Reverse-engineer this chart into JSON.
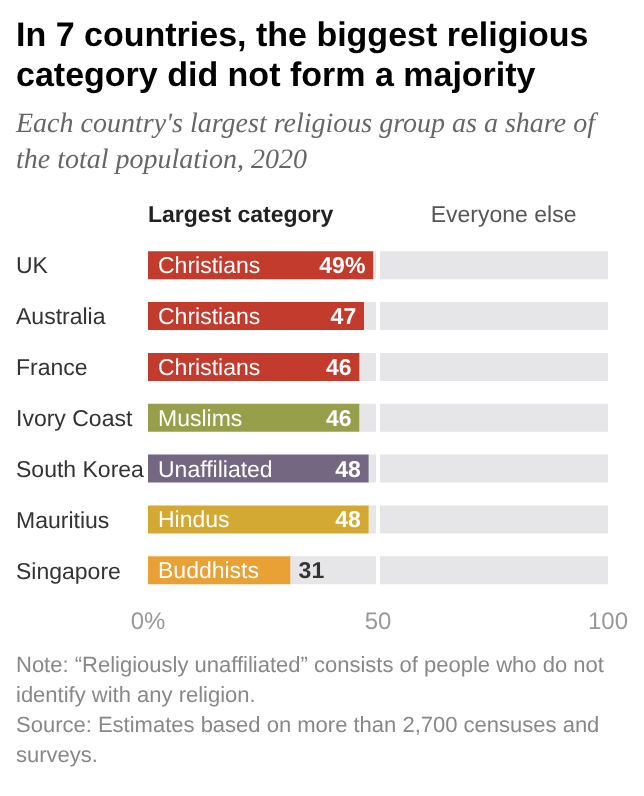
{
  "chart_data": {
    "type": "bar",
    "orientation": "horizontal",
    "stacked": true,
    "title": "In 7 countries, the biggest religious category did not form a majority",
    "subtitle": "Each country's largest religious group as a share of the total population, 2020",
    "categories": [
      "UK",
      "Australia",
      "France",
      "Ivory Coast",
      "South Korea",
      "Mauritius",
      "Singapore"
    ],
    "series": [
      {
        "name": "Largest category",
        "colors": [
          "#c33b2c",
          "#c33b2c",
          "#c33b2c",
          "#979f4a",
          "#736781",
          "#d3a934",
          "#e9a034"
        ],
        "values": [
          49,
          47,
          46,
          46,
          48,
          48,
          31
        ],
        "value_labels": [
          "49%",
          "47",
          "46",
          "46",
          "48",
          "48",
          "31"
        ]
      },
      {
        "name": "Everyone else",
        "color": "#e6e6e8",
        "values": [
          51,
          53,
          54,
          54,
          52,
          52,
          69
        ]
      }
    ],
    "xlim": [
      0,
      100
    ],
    "xticks": [
      {
        "value": 0,
        "label": "0%"
      },
      50,
      100
    ],
    "ref_lines": [
      {
        "axis": "x",
        "value": 50,
        "color": "#ffffff"
      }
    ],
    "legend": "top",
    "grid": false,
    "annotations": [
      {
        "text": "Christians",
        "y": "UK"
      },
      {
        "text": "Christians",
        "y": "Australia"
      },
      {
        "text": "Christians",
        "y": "France"
      },
      {
        "text": "Muslims",
        "y": "Ivory Coast"
      },
      {
        "text": "Unaffiliated",
        "y": "South Korea"
      },
      {
        "text": "Hindus",
        "y": "Mauritius"
      },
      {
        "text": "Buddhists",
        "y": "Singapore"
      },
      "Note: “Religiously unaffiliated” consists of people who do not identify with any religion.",
      "Source: Estimates based on more than 2,700 censuses and surveys."
    ]
  }
}
